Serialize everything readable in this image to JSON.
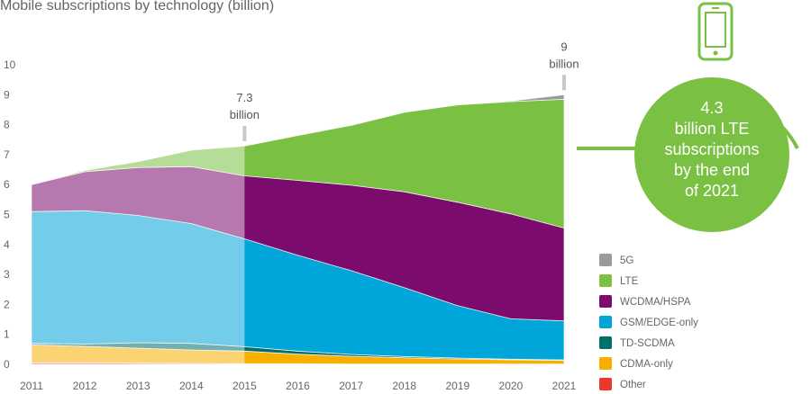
{
  "chart_data": {
    "type": "area",
    "title": "Mobile subscriptions by technology (billion)",
    "x": [
      2011,
      2012,
      2013,
      2014,
      2015,
      2016,
      2017,
      2018,
      2019,
      2020,
      2021
    ],
    "ylim": [
      0,
      10
    ],
    "yticks": [
      0,
      1,
      2,
      3,
      4,
      5,
      6,
      7,
      8,
      9,
      10
    ],
    "historical_until": 2015,
    "series": [
      {
        "name": "Other",
        "color": "#e8392b",
        "values": [
          0.05,
          0.05,
          0.04,
          0.03,
          0.02,
          0.02,
          0.01,
          0.01,
          0.01,
          0.01,
          0.01
        ]
      },
      {
        "name": "CDMA-only",
        "color": "#f7b000",
        "values": [
          0.6,
          0.55,
          0.5,
          0.45,
          0.42,
          0.32,
          0.26,
          0.21,
          0.17,
          0.14,
          0.12
        ]
      },
      {
        "name": "TD-SCDMA",
        "color": "#006e6b",
        "values": [
          0.05,
          0.08,
          0.18,
          0.22,
          0.15,
          0.1,
          0.06,
          0.04,
          0.03,
          0.02,
          0.02
        ]
      },
      {
        "name": "GSM/EDGE-only",
        "color": "#00a5d9",
        "values": [
          4.4,
          4.45,
          4.25,
          4.0,
          3.6,
          3.2,
          2.8,
          2.3,
          1.75,
          1.35,
          1.3
        ]
      },
      {
        "name": "WCDMA/HSPA",
        "color": "#7b0c6e",
        "values": [
          0.9,
          1.3,
          1.6,
          1.9,
          2.1,
          2.5,
          2.85,
          3.2,
          3.45,
          3.5,
          3.1
        ]
      },
      {
        "name": "LTE",
        "color": "#7ac143",
        "values": [
          0.0,
          0.05,
          0.2,
          0.55,
          1.0,
          1.5,
          2.0,
          2.65,
          3.25,
          3.75,
          4.3
        ]
      },
      {
        "name": "5G",
        "color": "#9b9b9b",
        "values": [
          0,
          0,
          0,
          0,
          0,
          0,
          0,
          0,
          0,
          0.02,
          0.15
        ]
      }
    ],
    "annotations": [
      {
        "x": 2015,
        "value": 7.3,
        "lines": [
          "7.3",
          "billion"
        ]
      },
      {
        "x": 2021,
        "value": 9,
        "lines": [
          "9",
          "billion"
        ]
      }
    ],
    "callout": {
      "lines": [
        "4.3",
        "billion LTE",
        "subscriptions",
        "by the end",
        "of 2021"
      ],
      "color": "#7ac143"
    },
    "legend": {
      "position": "bottom-right",
      "order": [
        "5G",
        "LTE",
        "WCDMA/HSPA",
        "GSM/EDGE-only",
        "TD-SCDMA",
        "CDMA-only",
        "Other"
      ]
    }
  }
}
